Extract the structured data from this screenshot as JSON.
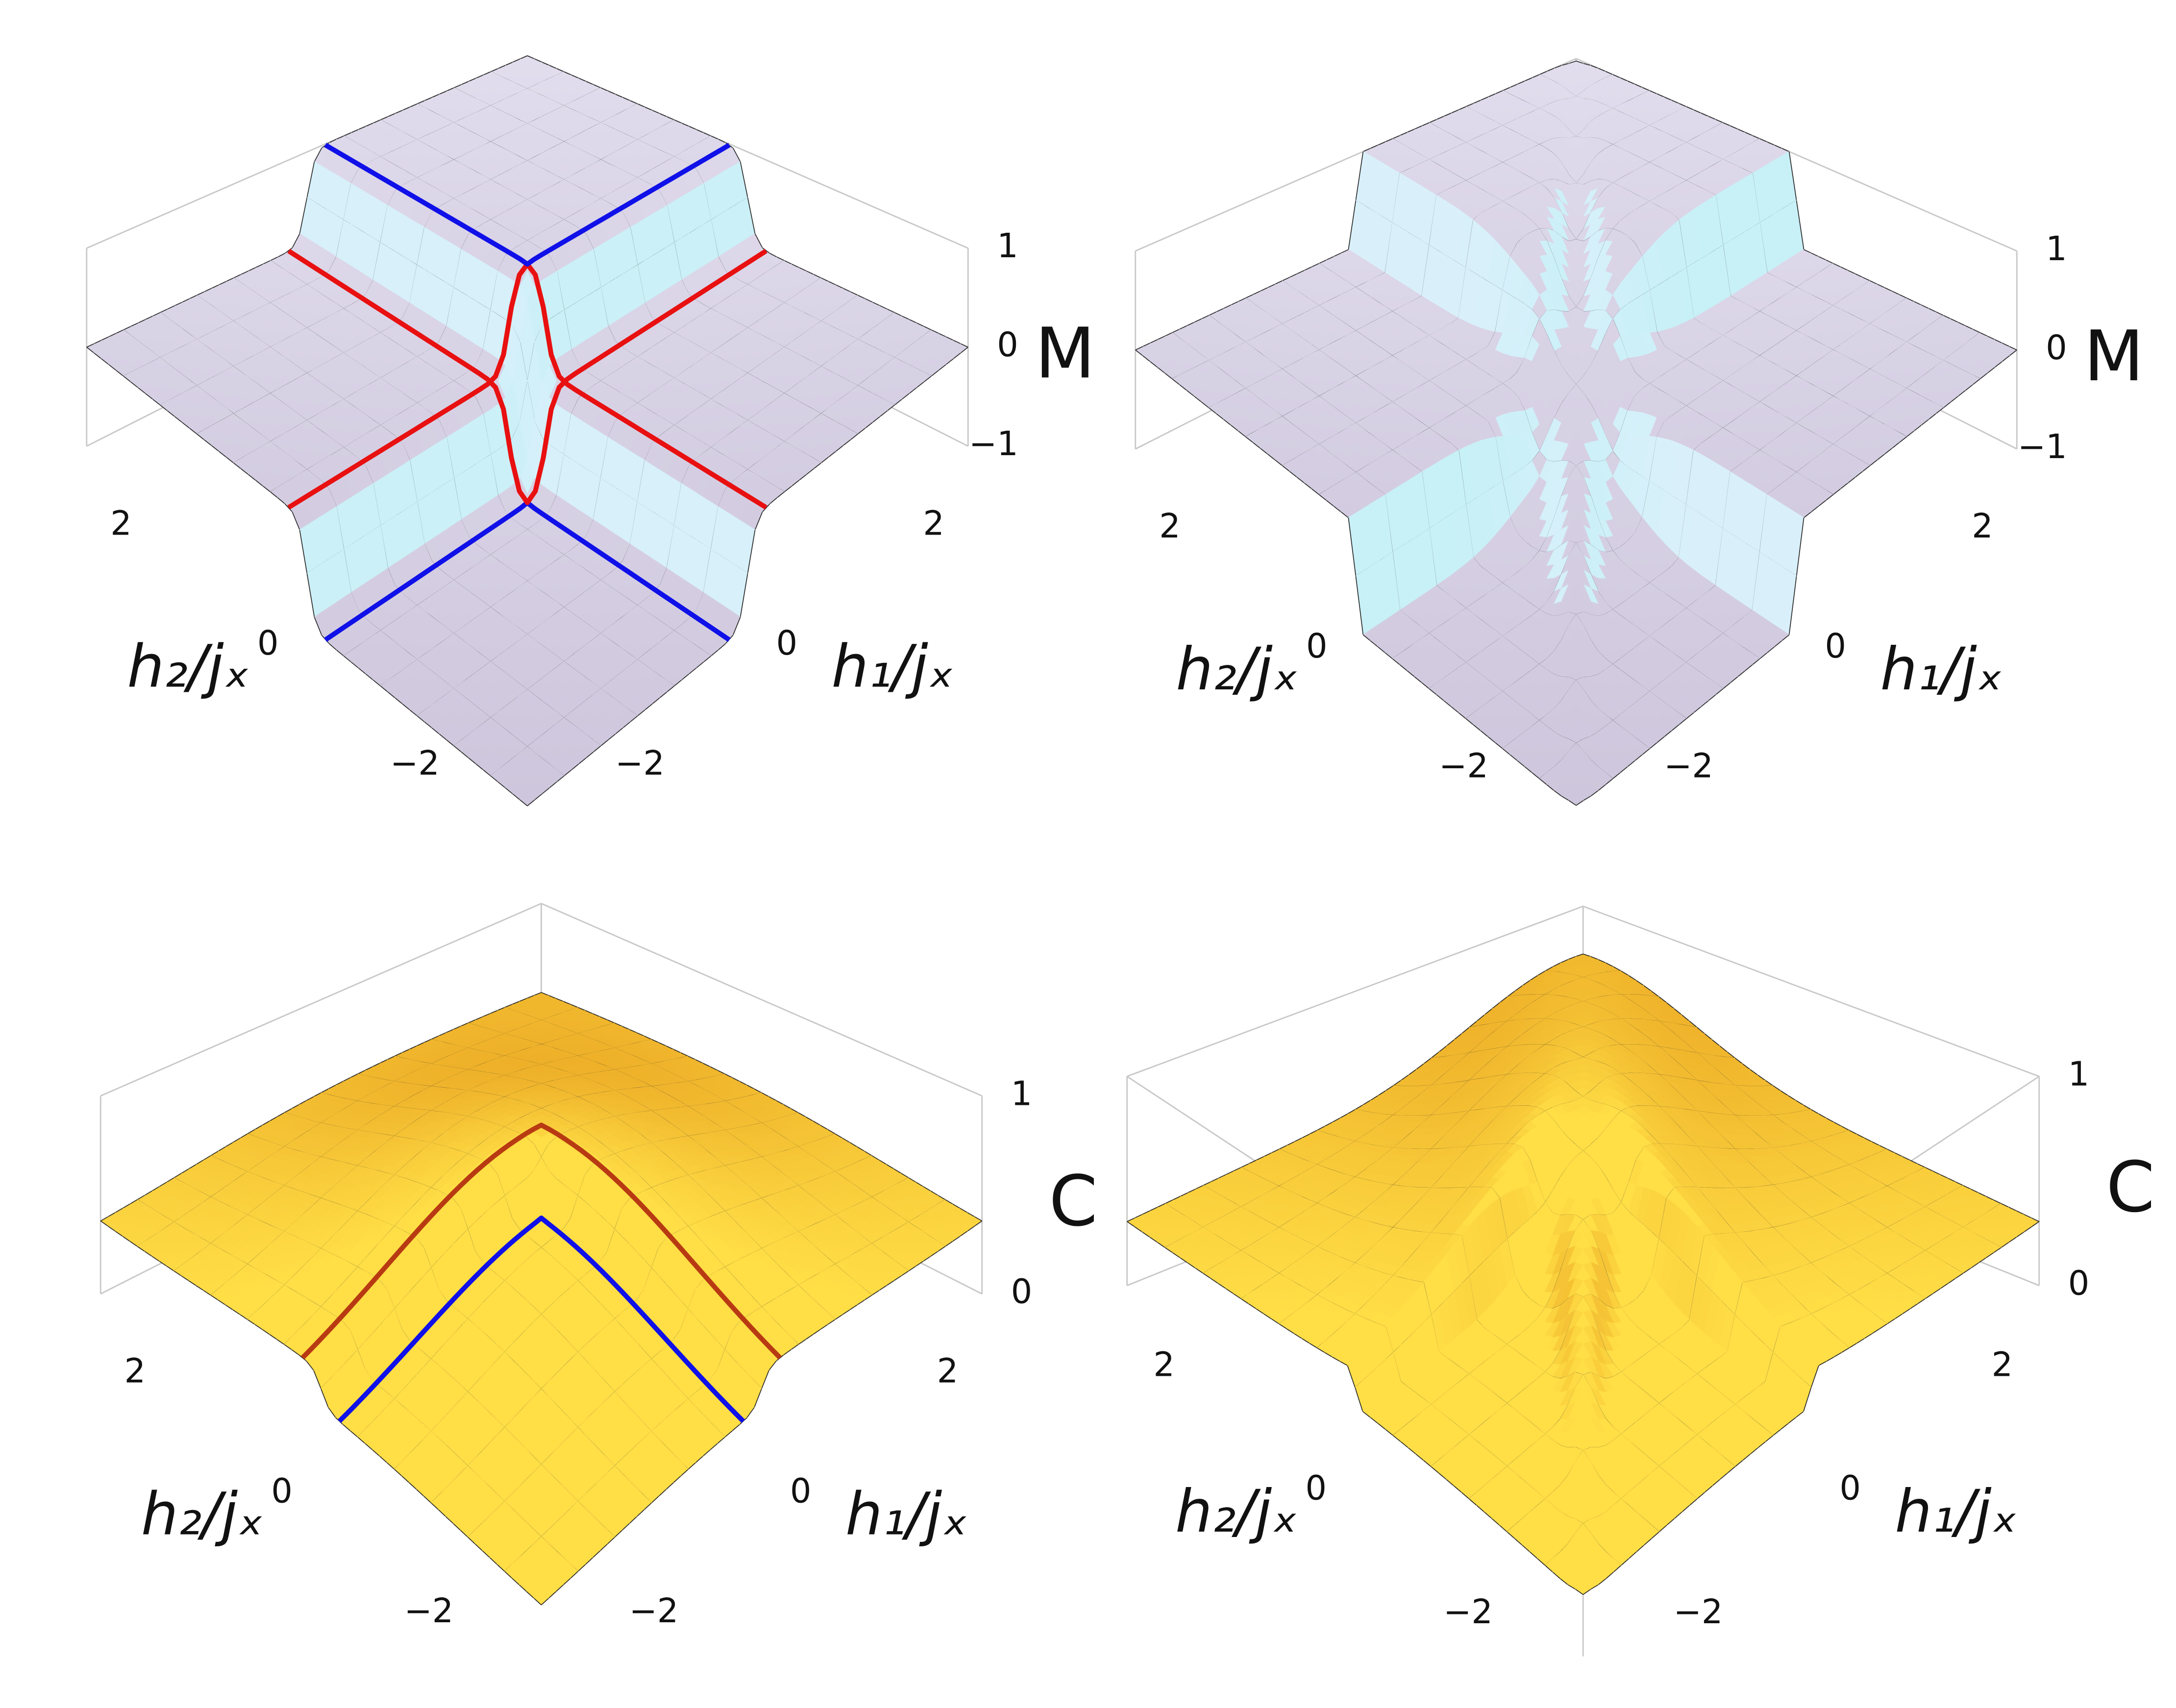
{
  "chart_data": [
    {
      "type": "surface3d",
      "xlabel": "h₁/jₓ",
      "ylabel": "h₂/jₓ",
      "zlabel": "M",
      "xlim": [
        -3,
        3
      ],
      "ylim": [
        -3,
        3
      ],
      "zlim": [
        -1,
        1
      ],
      "xticks": [
        {
          "value": -2,
          "label": "−2"
        },
        0,
        2
      ],
      "yticks": [
        {
          "value": -2,
          "label": "−2"
        },
        0,
        2
      ],
      "zticks": [
        {
          "value": -1,
          "label": "−1"
        },
        0,
        1
      ]
    },
    {
      "type": "surface3d",
      "xlabel": "h₁/jₓ",
      "ylabel": "h₂/jₓ",
      "zlabel": "M",
      "xlim": [
        -3,
        3
      ],
      "ylim": [
        -3,
        3
      ],
      "zlim": [
        -1,
        1
      ],
      "xticks": [
        {
          "value": -2,
          "label": "−2"
        },
        0,
        2
      ],
      "yticks": [
        {
          "value": -2,
          "label": "−2"
        },
        0,
        2
      ],
      "zticks": [
        {
          "value": -1,
          "label": "−1"
        },
        0,
        1
      ]
    },
    {
      "type": "surface3d",
      "xlabel": "h₁/jₓ",
      "ylabel": "h₂/jₓ",
      "zlabel": "C",
      "xlim": [
        -3,
        3
      ],
      "ylim": [
        -3,
        3
      ],
      "zlim": [
        0,
        1
      ],
      "xticks": [
        {
          "value": -2,
          "label": "−2"
        },
        0,
        2
      ],
      "yticks": [
        {
          "value": -2,
          "label": "−2"
        },
        0,
        2
      ],
      "zticks": [
        0,
        1
      ]
    },
    {
      "type": "surface3d",
      "xlabel": "h₁/jₓ",
      "ylabel": "h₂/jₓ",
      "zlabel": "C",
      "xlim": [
        -3,
        3
      ],
      "ylim": [
        -3,
        3
      ],
      "zlim": [
        0,
        1
      ],
      "xticks": [
        {
          "value": -2,
          "label": "−2"
        },
        0,
        2
      ],
      "yticks": [
        {
          "value": -2,
          "label": "−2"
        },
        0,
        2
      ],
      "zticks": [
        0,
        1
      ]
    }
  ]
}
